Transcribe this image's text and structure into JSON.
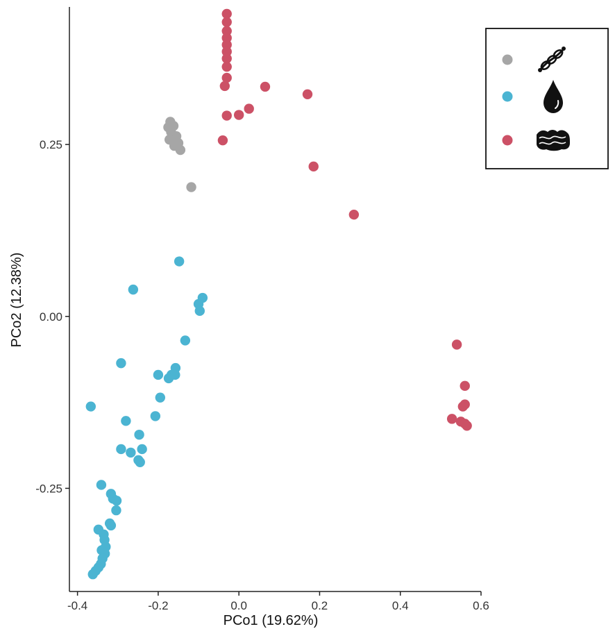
{
  "chart_data": {
    "type": "scatter",
    "title": "",
    "xlabel": "PCo1 (19.62%)",
    "ylabel": "PCo2 (12.38%)",
    "xlim": [
      -0.42,
      0.6
    ],
    "ylim": [
      -0.4,
      0.45
    ],
    "xticks": [
      -0.4,
      -0.2,
      0.0,
      0.2,
      0.4,
      0.6
    ],
    "xtick_labels": [
      "-0.4",
      "-0.2",
      "0.0",
      "0.2",
      "0.4",
      "0.6"
    ],
    "yticks": [
      -0.25,
      0.0,
      0.25
    ],
    "ytick_labels": [
      "-0.25",
      "0.00",
      "0.25"
    ],
    "grid": false,
    "legend_position": "top-right",
    "series": [
      {
        "icon": "rope-icon",
        "color": "#a6a6a6",
        "points": [
          [
            -0.17,
            0.283
          ],
          [
            -0.175,
            0.275
          ],
          [
            -0.162,
            0.277
          ],
          [
            -0.168,
            0.268
          ],
          [
            -0.155,
            0.262
          ],
          [
            -0.172,
            0.257
          ],
          [
            -0.15,
            0.252
          ],
          [
            -0.16,
            0.248
          ],
          [
            -0.145,
            0.242
          ],
          [
            -0.118,
            0.188
          ]
        ]
      },
      {
        "icon": "water-drop-icon",
        "color": "#4bb4d2",
        "points": [
          [
            -0.148,
            0.08
          ],
          [
            -0.262,
            0.039
          ],
          [
            -0.09,
            0.027
          ],
          [
            -0.1,
            0.018
          ],
          [
            -0.097,
            0.008
          ],
          [
            -0.133,
            -0.035
          ],
          [
            -0.292,
            -0.068
          ],
          [
            -0.157,
            -0.075
          ],
          [
            -0.167,
            -0.085
          ],
          [
            -0.2,
            -0.085
          ],
          [
            -0.158,
            -0.085
          ],
          [
            -0.174,
            -0.09
          ],
          [
            -0.195,
            -0.118
          ],
          [
            -0.367,
            -0.131
          ],
          [
            -0.207,
            -0.145
          ],
          [
            -0.28,
            -0.152
          ],
          [
            -0.247,
            -0.172
          ],
          [
            -0.292,
            -0.193
          ],
          [
            -0.24,
            -0.193
          ],
          [
            -0.268,
            -0.198
          ],
          [
            -0.249,
            -0.209
          ],
          [
            -0.245,
            -0.212
          ],
          [
            -0.341,
            -0.245
          ],
          [
            -0.317,
            -0.258
          ],
          [
            -0.312,
            -0.265
          ],
          [
            -0.303,
            -0.268
          ],
          [
            -0.304,
            -0.282
          ],
          [
            -0.32,
            -0.301
          ],
          [
            -0.317,
            -0.304
          ],
          [
            -0.348,
            -0.31
          ],
          [
            -0.335,
            -0.317
          ],
          [
            -0.333,
            -0.325
          ],
          [
            -0.33,
            -0.335
          ],
          [
            -0.34,
            -0.34
          ],
          [
            -0.332,
            -0.345
          ],
          [
            -0.338,
            -0.352
          ],
          [
            -0.342,
            -0.36
          ],
          [
            -0.348,
            -0.365
          ],
          [
            -0.355,
            -0.37
          ],
          [
            -0.362,
            -0.375
          ]
        ]
      },
      {
        "icon": "sediment-icon",
        "color": "#cc5166",
        "points": [
          [
            -0.03,
            0.44
          ],
          [
            -0.03,
            0.428
          ],
          [
            -0.03,
            0.415
          ],
          [
            -0.03,
            0.405
          ],
          [
            -0.03,
            0.395
          ],
          [
            -0.03,
            0.385
          ],
          [
            -0.03,
            0.375
          ],
          [
            -0.03,
            0.363
          ],
          [
            -0.03,
            0.347
          ],
          [
            -0.035,
            0.335
          ],
          [
            0.065,
            0.334
          ],
          [
            0.17,
            0.323
          ],
          [
            0.025,
            0.302
          ],
          [
            0.0,
            0.293
          ],
          [
            -0.03,
            0.292
          ],
          [
            -0.04,
            0.256
          ],
          [
            0.185,
            0.218
          ],
          [
            0.285,
            0.148
          ],
          [
            0.54,
            -0.041
          ],
          [
            0.56,
            -0.101
          ],
          [
            0.56,
            -0.128
          ],
          [
            0.555,
            -0.131
          ],
          [
            0.528,
            -0.149
          ],
          [
            0.55,
            -0.153
          ],
          [
            0.56,
            -0.156
          ],
          [
            0.565,
            -0.159
          ]
        ]
      }
    ]
  }
}
